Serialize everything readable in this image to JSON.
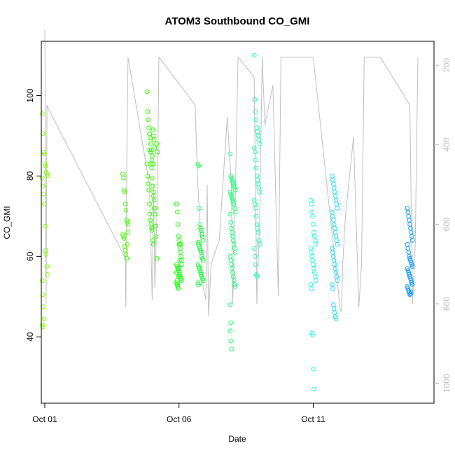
{
  "chart_data": {
    "type": "scatter",
    "title": "ATOM3 Southbound CO_GMI",
    "xlabel": "Date",
    "ylabel": "CO_GMI",
    "x_ticks": [
      "Oct 01",
      "Oct 06",
      "Oct 11"
    ],
    "y_ticks": [
      "40",
      "60",
      "80",
      "100"
    ],
    "y2_ticks": [
      "200",
      "400",
      "600",
      "800",
      "1000"
    ],
    "xlim": [
      -0.13,
      14.5
    ],
    "ylim": [
      23.5,
      113.5
    ],
    "y2lim": [
      1050,
      140
    ],
    "y2_reversed": true,
    "y2_color": "#bbbbbb",
    "grid": false,
    "trace_color": "#bfbfbf",
    "secondary_series": {
      "name": "",
      "points": [
        [
          0.0,
          110
        ],
        [
          0.02,
          300
        ],
        [
          0.05,
          800
        ],
        [
          0.08,
          300
        ],
        [
          0.1,
          305
        ],
        [
          3.0,
          685
        ],
        [
          3.02,
          810
        ],
        [
          3.05,
          470
        ],
        [
          3.1,
          180
        ],
        [
          3.9,
          500
        ],
        [
          4.0,
          790
        ],
        [
          4.05,
          500
        ],
        [
          4.1,
          760
        ],
        [
          4.2,
          520
        ],
        [
          4.25,
          180
        ],
        [
          5.6,
          300
        ],
        [
          5.7,
          500
        ],
        [
          5.8,
          620
        ],
        [
          5.9,
          760
        ],
        [
          6.0,
          790
        ],
        [
          6.05,
          500
        ],
        [
          6.1,
          830
        ],
        [
          6.2,
          700
        ],
        [
          6.5,
          640
        ],
        [
          6.8,
          330
        ],
        [
          6.95,
          500
        ],
        [
          7.0,
          800
        ],
        [
          7.05,
          700
        ],
        [
          7.2,
          180
        ],
        [
          7.8,
          230
        ],
        [
          7.9,
          800
        ],
        [
          8.0,
          600
        ],
        [
          8.1,
          180
        ],
        [
          8.2,
          350
        ],
        [
          8.5,
          250
        ],
        [
          8.7,
          780
        ],
        [
          8.8,
          180
        ],
        [
          10.0,
          180
        ],
        [
          11.0,
          810
        ],
        [
          11.05,
          820
        ],
        [
          11.1,
          700
        ],
        [
          11.2,
          580
        ],
        [
          11.5,
          380
        ],
        [
          11.7,
          810
        ],
        [
          11.8,
          700
        ],
        [
          11.9,
          180
        ],
        [
          12.5,
          180
        ],
        [
          13.6,
          300
        ],
        [
          13.7,
          800
        ],
        [
          13.8,
          650
        ],
        [
          13.9,
          180
        ]
      ]
    },
    "series": [
      {
        "name": "",
        "color": "#7fff00",
        "x": [
          0.0,
          0.0,
          0.0,
          0.0,
          0.0,
          0.0,
          0.0,
          0.0,
          0.0,
          0.0,
          0.0,
          0.0,
          0.0,
          0.0,
          0.0,
          0.0,
          0.0,
          0.0,
          0.0,
          0.0,
          0.0,
          0.0
        ],
        "y": [
          95.5,
          90.5,
          86,
          85.5,
          83,
          82.5,
          81,
          80.5,
          80,
          79.5,
          77.5,
          75.5,
          73,
          67.5,
          61.5,
          60.5,
          57.5,
          55.5,
          54,
          50.5,
          47.5,
          44.5
        ]
      },
      {
        "name": "",
        "color": "#7fff00",
        "x": [
          0.0,
          0.0
        ],
        "y": [
          43,
          42.5
        ]
      },
      {
        "name": "",
        "color": "#4cff00",
        "x": [
          3.0,
          3.0,
          3.0,
          3.0,
          3.0,
          3.0,
          3.0,
          3.0,
          3.0,
          3.0,
          3.0,
          3.0,
          3.0,
          3.0,
          3.0,
          3.0,
          3.0,
          3.0
        ],
        "y": [
          80.5,
          79.5,
          76.5,
          76,
          73,
          71.5,
          69,
          68.5,
          68,
          65.5,
          65,
          64.5,
          62.5,
          61.5,
          60.5,
          59.5,
          63,
          66
        ]
      },
      {
        "name": "",
        "color": "#33ff00",
        "x": [
          3.9,
          3.9,
          3.9,
          3.9,
          3.9,
          3.9,
          3.9,
          3.9,
          3.9,
          3.9,
          3.9,
          3.9,
          3.9,
          3.9,
          4.0,
          4.0,
          4.0,
          4.0,
          4.0,
          4.0,
          4.0,
          4.0,
          4.0,
          4.0,
          4.0,
          4.0,
          4.0,
          4.0,
          4.0,
          4.0,
          4.0,
          4.0,
          4.0,
          4.0,
          4.1,
          4.1,
          4.1,
          4.1,
          4.1,
          4.1,
          4.1,
          4.1,
          4.1,
          4.1
        ],
        "y": [
          101,
          96,
          94,
          92,
          90.5,
          89.5,
          88,
          86.5,
          84,
          83,
          80,
          78,
          76.5,
          73,
          91.5,
          90,
          89,
          87,
          86.5,
          86,
          83,
          82,
          79.5,
          77.5,
          75,
          74,
          72,
          70.5,
          69,
          68,
          67,
          66.5,
          64,
          63,
          88,
          86,
          85,
          83,
          76,
          72,
          70.5,
          67.5,
          65,
          59.5
        ]
      },
      {
        "name": "",
        "color": "#22ff11",
        "x": [
          5.0,
          5.0,
          5.0,
          5.0,
          5.0,
          5.0,
          5.0,
          5.0,
          5.0,
          5.0,
          5.0,
          5.0,
          5.0,
          5.0,
          5.0,
          5.0,
          5.0,
          5.0,
          5.0,
          5.0,
          5.0,
          5.0,
          5.0,
          5.0,
          5.0,
          5.0,
          5.0,
          5.0,
          5.0,
          5.0,
          5.0,
          5.0
        ],
        "y": [
          73,
          71,
          68,
          65,
          64,
          63,
          62,
          60,
          59,
          58,
          57.5,
          57,
          56.5,
          56,
          55.5,
          55,
          54.5,
          54,
          53.5,
          53,
          52.5,
          55,
          57,
          59,
          61,
          63,
          58,
          56,
          54,
          53,
          52,
          63
        ]
      },
      {
        "name": "",
        "color": "#22ff44",
        "x": [
          5.8,
          5.8,
          5.8,
          5.8,
          5.8,
          5.8,
          5.8,
          5.8,
          5.8,
          5.8,
          5.8,
          5.8,
          5.8,
          5.8,
          5.8,
          5.8,
          5.8,
          5.8,
          5.8,
          5.8,
          5.8,
          5.8,
          5.8,
          5.8,
          5.8,
          5.8,
          5.8,
          5.8,
          5.8
        ],
        "y": [
          83,
          82.5,
          72,
          68,
          67,
          66.5,
          65.5,
          65,
          64,
          63.5,
          63,
          62.5,
          62,
          61.5,
          61,
          60,
          59.5,
          59,
          58,
          57.5,
          57,
          56.5,
          56,
          55.5,
          55,
          54.5,
          54,
          53.5,
          53
        ]
      },
      {
        "name": "",
        "color": "#22ff77",
        "x": [
          7.0,
          7.0,
          7.0,
          7.0,
          7.0,
          7.0,
          7.0,
          7.0,
          7.0,
          7.0,
          7.0,
          7.0,
          7.0,
          7.0,
          7.0,
          7.0,
          7.0,
          7.0,
          7.0,
          7.0,
          7.0,
          7.0,
          7.0,
          7.0,
          7.0,
          7.0,
          7.0,
          7.0,
          7.0,
          7.0,
          7.0,
          7.0,
          7.0,
          7.0,
          7.0,
          7.0,
          7.0,
          7.0
        ],
        "y": [
          85.5,
          80,
          79.5,
          79,
          78.5,
          78,
          77.5,
          77,
          76.5,
          76,
          75.5,
          75,
          74.5,
          74,
          73.5,
          73,
          72,
          71,
          70.5,
          68.5,
          67,
          66,
          65,
          64,
          63,
          62,
          61,
          60,
          59,
          58,
          57,
          56,
          55,
          54,
          53,
          52.5,
          48,
          43.5
        ]
      },
      {
        "name": "",
        "color": "#22ff77",
        "x": [
          7.0,
          7.0,
          7.0
        ],
        "y": [
          41.5,
          39,
          37
        ]
      },
      {
        "name": "",
        "color": "#22ffaa",
        "x": [
          7.9,
          7.9,
          7.9,
          7.9,
          7.9,
          7.9,
          7.9,
          7.9,
          7.9,
          7.9,
          7.9,
          7.9,
          7.9,
          7.9,
          7.9,
          7.9,
          7.9,
          7.9,
          7.9,
          7.9,
          7.9,
          7.9,
          7.9,
          7.9,
          7.9,
          7.9,
          7.9,
          7.9,
          7.9,
          7.9,
          7.9,
          7.9
        ],
        "y": [
          110,
          99,
          96,
          94,
          92,
          91,
          90,
          89,
          88,
          87,
          86,
          84,
          82,
          80,
          79,
          78,
          77,
          76,
          74,
          73,
          72,
          70,
          68,
          67,
          66,
          64,
          63,
          62,
          60,
          58,
          55.5,
          55
        ]
      },
      {
        "name": "",
        "color": "#22ffdd",
        "x": [
          10.0,
          10.0,
          10.0,
          10.0,
          10.0,
          10.0,
          10.0,
          10.0,
          10.0,
          10.0,
          10.0,
          10.0,
          10.0,
          10.0,
          10.0,
          10.0,
          10.0,
          10.0,
          10.0,
          10.0,
          10.0,
          10.0,
          10.0,
          10.0
        ],
        "y": [
          74,
          73,
          71,
          70,
          68,
          66,
          65,
          64,
          63,
          62,
          61,
          60,
          59,
          58,
          57,
          56,
          55,
          54,
          53,
          52,
          41,
          40.5,
          32,
          27
        ]
      },
      {
        "name": "",
        "color": "#22ddff",
        "x": [
          10.8,
          10.8,
          10.8,
          10.8,
          10.8,
          10.8,
          10.8,
          10.8,
          10.8,
          10.8,
          10.8,
          10.8,
          10.8,
          10.8,
          10.8,
          10.8,
          10.8,
          10.8,
          10.8,
          10.8,
          10.8,
          10.8,
          10.8,
          10.8,
          10.8,
          10.8,
          10.8,
          10.8,
          10.8,
          10.8,
          10.8,
          10.8,
          10.8,
          10.8
        ],
        "y": [
          80,
          79,
          78,
          77,
          76,
          75,
          74,
          73,
          72,
          71,
          70,
          69,
          68,
          67,
          66,
          65,
          64,
          63,
          62,
          61,
          60,
          59,
          58,
          57,
          56,
          55,
          54,
          53,
          52,
          48,
          47,
          46,
          45,
          44.5
        ]
      },
      {
        "name": "",
        "color": "#1199ff",
        "x": [
          13.6,
          13.6,
          13.6,
          13.6,
          13.6,
          13.6,
          13.6,
          13.6,
          13.6,
          13.6,
          13.6,
          13.6,
          13.6,
          13.6,
          13.6,
          13.6,
          13.6,
          13.6,
          13.6,
          13.6,
          13.6,
          13.6,
          13.6,
          13.6,
          13.6,
          13.6,
          13.6,
          13.6,
          13.6,
          13.6,
          13.6,
          13.6,
          13.6,
          13.6
        ],
        "y": [
          72,
          71,
          70,
          69,
          68,
          67,
          66,
          65,
          64,
          63,
          62,
          61,
          60,
          59.5,
          59,
          58.5,
          58,
          57.5,
          57,
          56.5,
          56,
          55.5,
          55,
          54.5,
          54,
          53.5,
          53,
          52.5,
          52,
          51.5,
          51,
          50.5,
          50.7,
          51.2
        ]
      }
    ]
  }
}
